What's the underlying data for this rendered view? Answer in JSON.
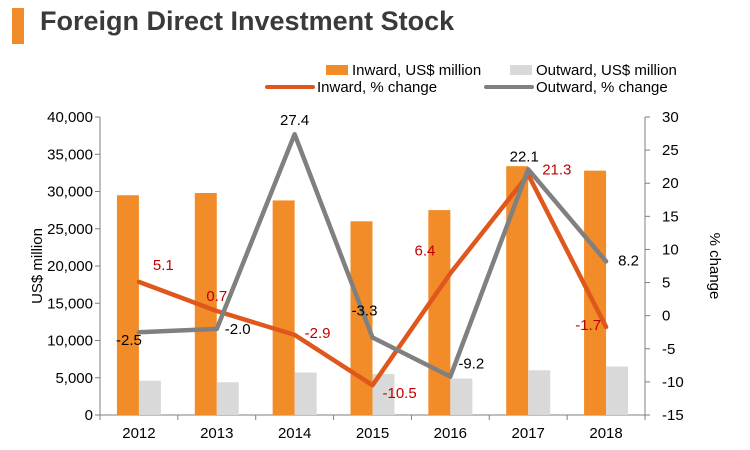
{
  "title": "Foreign Direct Investment Stock",
  "chart_data": {
    "type": "bar",
    "categories": [
      "2012",
      "2013",
      "2014",
      "2015",
      "2016",
      "2017",
      "2018"
    ],
    "series": [
      {
        "name": "Inward, US$ million",
        "kind": "bar",
        "axis": "left",
        "color": "#f28c28",
        "values": [
          29500,
          29800,
          28800,
          26000,
          27500,
          33400,
          32800
        ]
      },
      {
        "name": "Outward, US$ million",
        "kind": "bar",
        "axis": "left",
        "color": "#d9d9d9",
        "values": [
          4600,
          4400,
          5700,
          5500,
          4900,
          6000,
          6500
        ]
      },
      {
        "name": "Inward, % change",
        "kind": "line",
        "axis": "right",
        "color": "#e0571e",
        "label_color": "#c00000",
        "values": [
          5.1,
          0.7,
          -2.9,
          -10.5,
          6.4,
          21.3,
          -1.7
        ],
        "labels": [
          "5.1",
          "0.7",
          "-2.9",
          "-10.5",
          "6.4",
          "21.3",
          "-1.7"
        ]
      },
      {
        "name": "Outward, % change",
        "kind": "line",
        "axis": "right",
        "color": "#808080",
        "label_color": "#000000",
        "values": [
          -2.5,
          -2.0,
          27.4,
          -3.3,
          -9.2,
          22.1,
          8.2
        ],
        "labels": [
          "-2.5",
          "-2.0",
          "27.4",
          "-3.3",
          "-9.2",
          "22.1",
          "8.2"
        ]
      }
    ],
    "ylabel": "US$ million",
    "y2label": "% change",
    "ylim": [
      0,
      40000
    ],
    "y2lim": [
      -15,
      30
    ],
    "yticks": [
      "0",
      "5,000",
      "10,000",
      "15,000",
      "20,000",
      "25,000",
      "30,000",
      "35,000",
      "40,000"
    ],
    "y2ticks": [
      "-15",
      "-10",
      "-5",
      "0",
      "5",
      "10",
      "15",
      "20",
      "25",
      "30"
    ],
    "legend_position": "top-right",
    "grid": false
  }
}
